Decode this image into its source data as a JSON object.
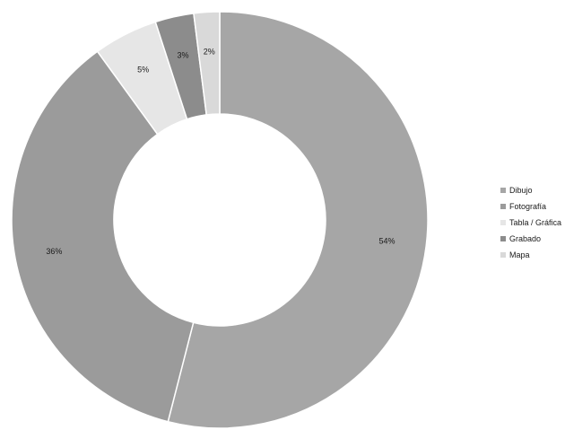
{
  "chart_data": {
    "type": "donut",
    "title": "",
    "slices": [
      {
        "label": "Dibujo",
        "value": 54,
        "value_label": "54%",
        "color": "#a6a6a6"
      },
      {
        "label": "Fotografía",
        "value": 36,
        "value_label": "36%",
        "color": "#9b9b9b"
      },
      {
        "label": "Tabla / Gráfica",
        "value": 5,
        "value_label": "5%",
        "color": "#e6e6e6"
      },
      {
        "label": "Grabado",
        "value": 3,
        "value_label": "3%",
        "color": "#8c8c8c"
      },
      {
        "label": "Mapa",
        "value": 2,
        "value_label": "2%",
        "color": "#d9d9d9"
      }
    ],
    "start_angle_deg": 0,
    "direction": "clockwise",
    "legend_position": "right",
    "slice_border_color": "#ffffff"
  }
}
